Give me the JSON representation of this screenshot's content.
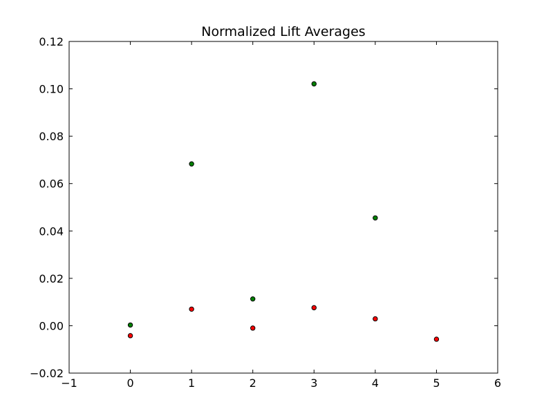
{
  "chart_data": {
    "type": "scatter",
    "title": "Normalized Lift Averages",
    "xlabel": "",
    "ylabel": "",
    "xlim": [
      -1,
      6
    ],
    "ylim": [
      -0.02,
      0.12
    ],
    "xticks": [
      -1,
      0,
      1,
      2,
      3,
      4,
      5,
      6
    ],
    "xtick_labels": [
      "−1",
      "0",
      "1",
      "2",
      "3",
      "4",
      "5",
      "6"
    ],
    "yticks": [
      -0.02,
      0.0,
      0.02,
      0.04,
      0.06,
      0.08,
      0.1,
      0.12
    ],
    "ytick_labels": [
      "−0.02",
      "0.00",
      "0.02",
      "0.04",
      "0.06",
      "0.08",
      "0.10",
      "0.12"
    ],
    "grid": false,
    "series": [
      {
        "color": "#008000",
        "points": [
          {
            "x": 0,
            "y": 0.0003
          },
          {
            "x": 1,
            "y": 0.0683
          },
          {
            "x": 2,
            "y": 0.0113
          },
          {
            "x": 3,
            "y": 0.1021
          },
          {
            "x": 4,
            "y": 0.0455
          }
        ]
      },
      {
        "color": "#ff0000",
        "points": [
          {
            "x": 0,
            "y": -0.0042
          },
          {
            "x": 1,
            "y": 0.007
          },
          {
            "x": 2,
            "y": -0.001
          },
          {
            "x": 3,
            "y": 0.0076
          },
          {
            "x": 4,
            "y": 0.0029
          },
          {
            "x": 5,
            "y": -0.0057
          }
        ]
      }
    ]
  }
}
